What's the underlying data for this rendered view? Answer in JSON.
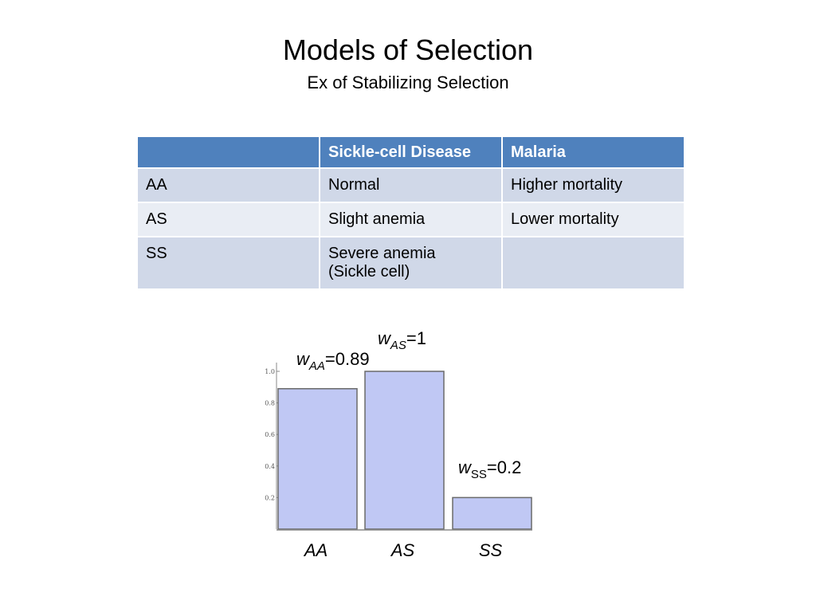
{
  "slide": {
    "title": "Models of Selection",
    "subtitle": "Ex of Stabilizing Selection"
  },
  "table": {
    "headers": [
      "",
      "Sickle-cell Disease",
      "Malaria"
    ],
    "rows": [
      [
        "AA",
        "Normal",
        "Higher mortality"
      ],
      [
        "AS",
        "Slight anemia",
        "Lower mortality"
      ],
      [
        "SS",
        "Severe anemia\n(Sickle cell)",
        ""
      ]
    ],
    "header_color": "#4f81bd",
    "band_colors": [
      "#d0d8e8",
      "#e9edf4"
    ]
  },
  "chart_data": {
    "type": "bar",
    "categories": [
      "AA",
      "AS",
      "SS"
    ],
    "values": [
      0.89,
      1,
      0.2
    ],
    "yticks": [
      "0.2",
      "0.4",
      "0.6",
      "0.8",
      "1.0"
    ],
    "ylim": [
      0,
      1.0
    ],
    "bar_color": "#c0c8f4",
    "bar_edge_color": "#6a6a6a",
    "annotations": [
      {
        "prefix": "w",
        "sub": "AA",
        "value": "=0.89",
        "sub_italic": true
      },
      {
        "prefix": "w",
        "sub": "AS",
        "value": "=1",
        "sub_italic": true
      },
      {
        "prefix": "w",
        "sub": "SS",
        "value": "=0.2",
        "sub_italic": false
      }
    ]
  }
}
